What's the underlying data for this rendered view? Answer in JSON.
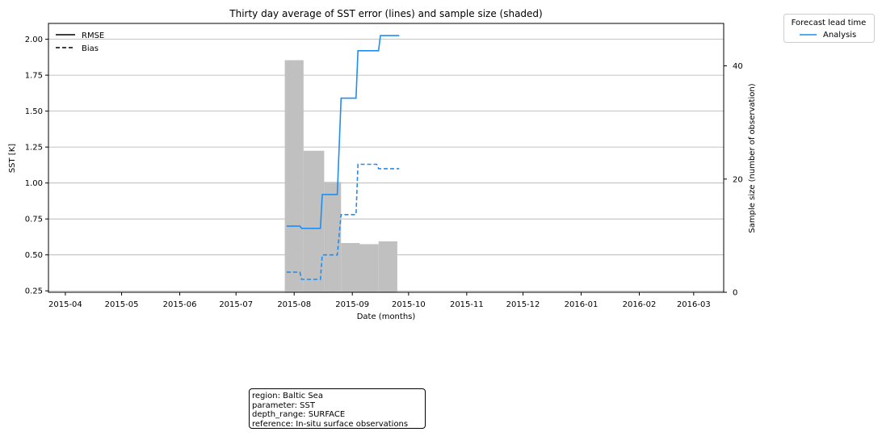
{
  "chart_data": {
    "type": "line",
    "title": "Thirty day average of SST error (lines) and sample size (shaded)",
    "xlabel": "Date (months)",
    "ylabel": "SST [K]",
    "y2label": "Sample size (number of observation)",
    "x_ticks": [
      "2015-04",
      "2015-05",
      "2015-06",
      "2015-07",
      "2015-08",
      "2015-09",
      "2015-10",
      "2015-11",
      "2015-12",
      "2016-01",
      "2016-02",
      "2016-03"
    ],
    "xlim": [
      "2015-03-23",
      "2016-03-17"
    ],
    "y_ticks": [
      "0.25",
      "0.50",
      "0.75",
      "1.00",
      "1.25",
      "1.50",
      "1.75",
      "2.00"
    ],
    "ylim": [
      0.24,
      2.11
    ],
    "y2_ticks": [
      "0",
      "20",
      "40"
    ],
    "y2lim": [
      0,
      47.5
    ],
    "grid": "y",
    "style_legend": {
      "placement": "top-left",
      "entries": [
        {
          "label": "RMSE",
          "linestyle": "solid"
        },
        {
          "label": "Bias",
          "linestyle": "dashed"
        }
      ]
    },
    "lead_legend": {
      "title": "Forecast lead time",
      "placement": "outside-right",
      "entries": [
        {
          "label": "Analysis",
          "color": "#1f8ef1"
        }
      ]
    },
    "series": [
      {
        "name": "RMSE",
        "lead": "Analysis",
        "color": "#1f8ef1",
        "linestyle": "solid",
        "points": [
          [
            "2015-07-28",
            0.7
          ],
          [
            "2015-08-04",
            0.7
          ],
          [
            "2015-08-05",
            0.685
          ],
          [
            "2015-08-15",
            0.685
          ],
          [
            "2015-08-16",
            0.92
          ],
          [
            "2015-08-24",
            0.92
          ],
          [
            "2015-08-26",
            1.59
          ],
          [
            "2015-09-03",
            1.59
          ],
          [
            "2015-09-04",
            1.92
          ],
          [
            "2015-09-15",
            1.92
          ],
          [
            "2015-09-16",
            2.025
          ],
          [
            "2015-09-26",
            2.025
          ]
        ]
      },
      {
        "name": "Bias",
        "lead": "Analysis",
        "color": "#1f8ef1",
        "linestyle": "dashed",
        "points": [
          [
            "2015-07-28",
            0.38
          ],
          [
            "2015-08-04",
            0.38
          ],
          [
            "2015-08-05",
            0.33
          ],
          [
            "2015-08-15",
            0.33
          ],
          [
            "2015-08-16",
            0.5
          ],
          [
            "2015-08-24",
            0.5
          ],
          [
            "2015-08-26",
            0.78
          ],
          [
            "2015-09-03",
            0.78
          ],
          [
            "2015-09-04",
            1.13
          ],
          [
            "2015-09-14",
            1.13
          ],
          [
            "2015-09-15",
            1.1
          ],
          [
            "2015-09-26",
            1.1
          ]
        ]
      }
    ],
    "bars": {
      "name": "Sample size",
      "color": "#c0c0c0",
      "segments": [
        {
          "start": "2015-07-27",
          "end": "2015-08-06",
          "value": 41
        },
        {
          "start": "2015-08-06",
          "end": "2015-08-17",
          "value": 25
        },
        {
          "start": "2015-08-17",
          "end": "2015-08-26",
          "value": 19.5
        },
        {
          "start": "2015-08-26",
          "end": "2015-09-05",
          "value": 8.7
        },
        {
          "start": "2015-09-05",
          "end": "2015-09-15",
          "value": 8.5
        },
        {
          "start": "2015-09-15",
          "end": "2015-09-25",
          "value": 9
        }
      ]
    }
  },
  "info_box": {
    "lines": [
      "region: Baltic Sea",
      "parameter: SST",
      "depth_range: SURFACE",
      "reference: In-situ surface observations"
    ]
  }
}
